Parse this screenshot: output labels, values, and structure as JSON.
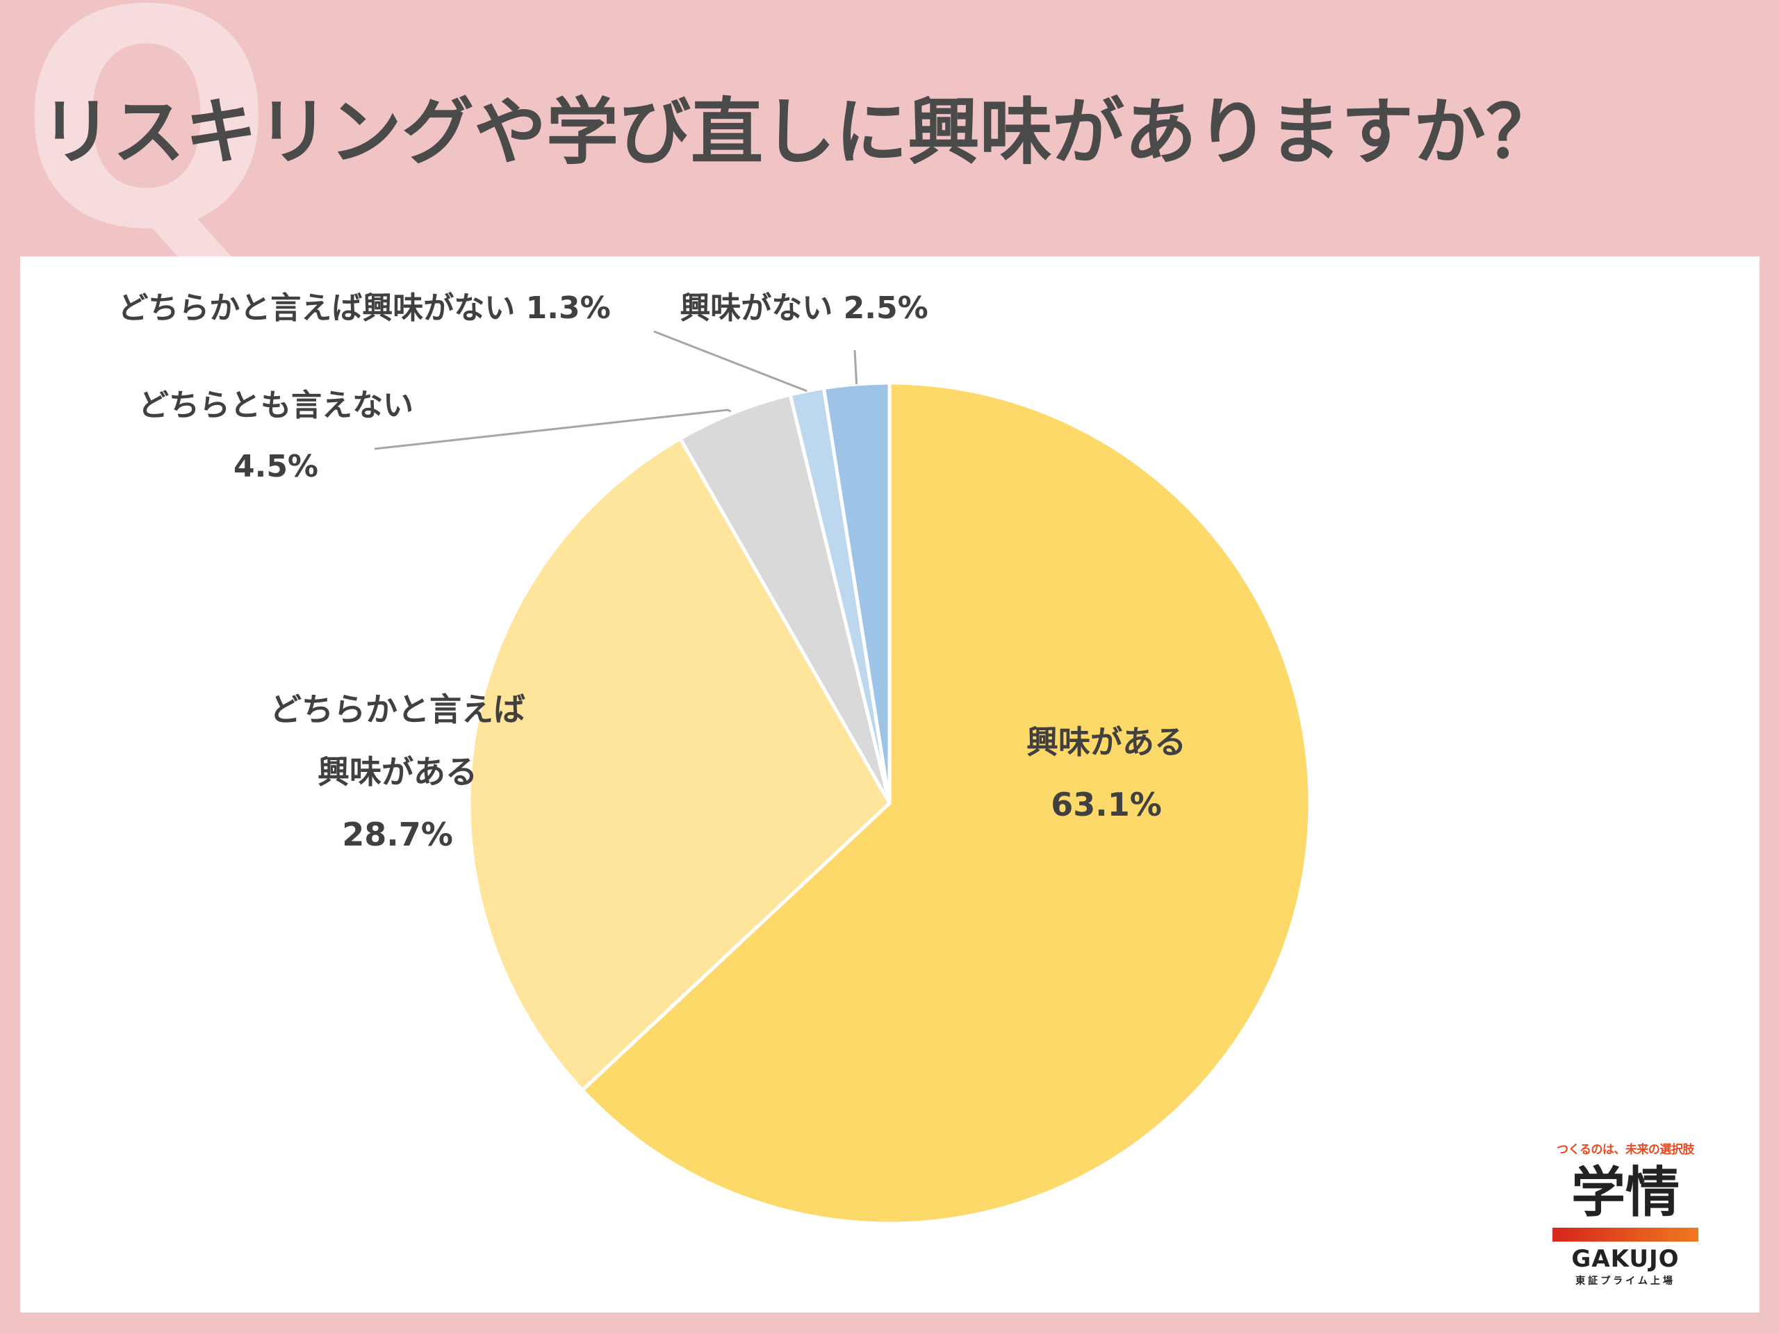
{
  "header": {
    "q_mark": "Q",
    "title": "リスキリングや学び直しに興味がありますか？"
  },
  "chart_data": {
    "type": "pie",
    "categories": [
      "興味がある",
      "どちらかと言えば興味がある",
      "どちらとも言えない",
      "どちらかと言えば興味がない",
      "興味がない"
    ],
    "values": [
      63.1,
      28.7,
      4.5,
      1.3,
      2.5
    ],
    "colors": [
      "#fdd96a",
      "#fee59b",
      "#d9d9d9",
      "#bdd7ee",
      "#9dc3e6"
    ],
    "data_labels": [
      [
        "興味がある",
        "63.1%"
      ],
      [
        "どちらかと言えば",
        "興味がある",
        "28.7%"
      ],
      [
        "どちらとも言えない",
        "4.5%"
      ],
      [
        "どちらかと言えば興味がない 1.3%"
      ],
      [
        "興味がない 2.5%"
      ]
    ],
    "start_angle_deg": 0,
    "direction": "clockwise"
  },
  "logo": {
    "tagline": "つくるのは、未来の選択肢",
    "mark": "学情",
    "english": "GAKUJO",
    "subtitle": "東証プライム上場"
  }
}
